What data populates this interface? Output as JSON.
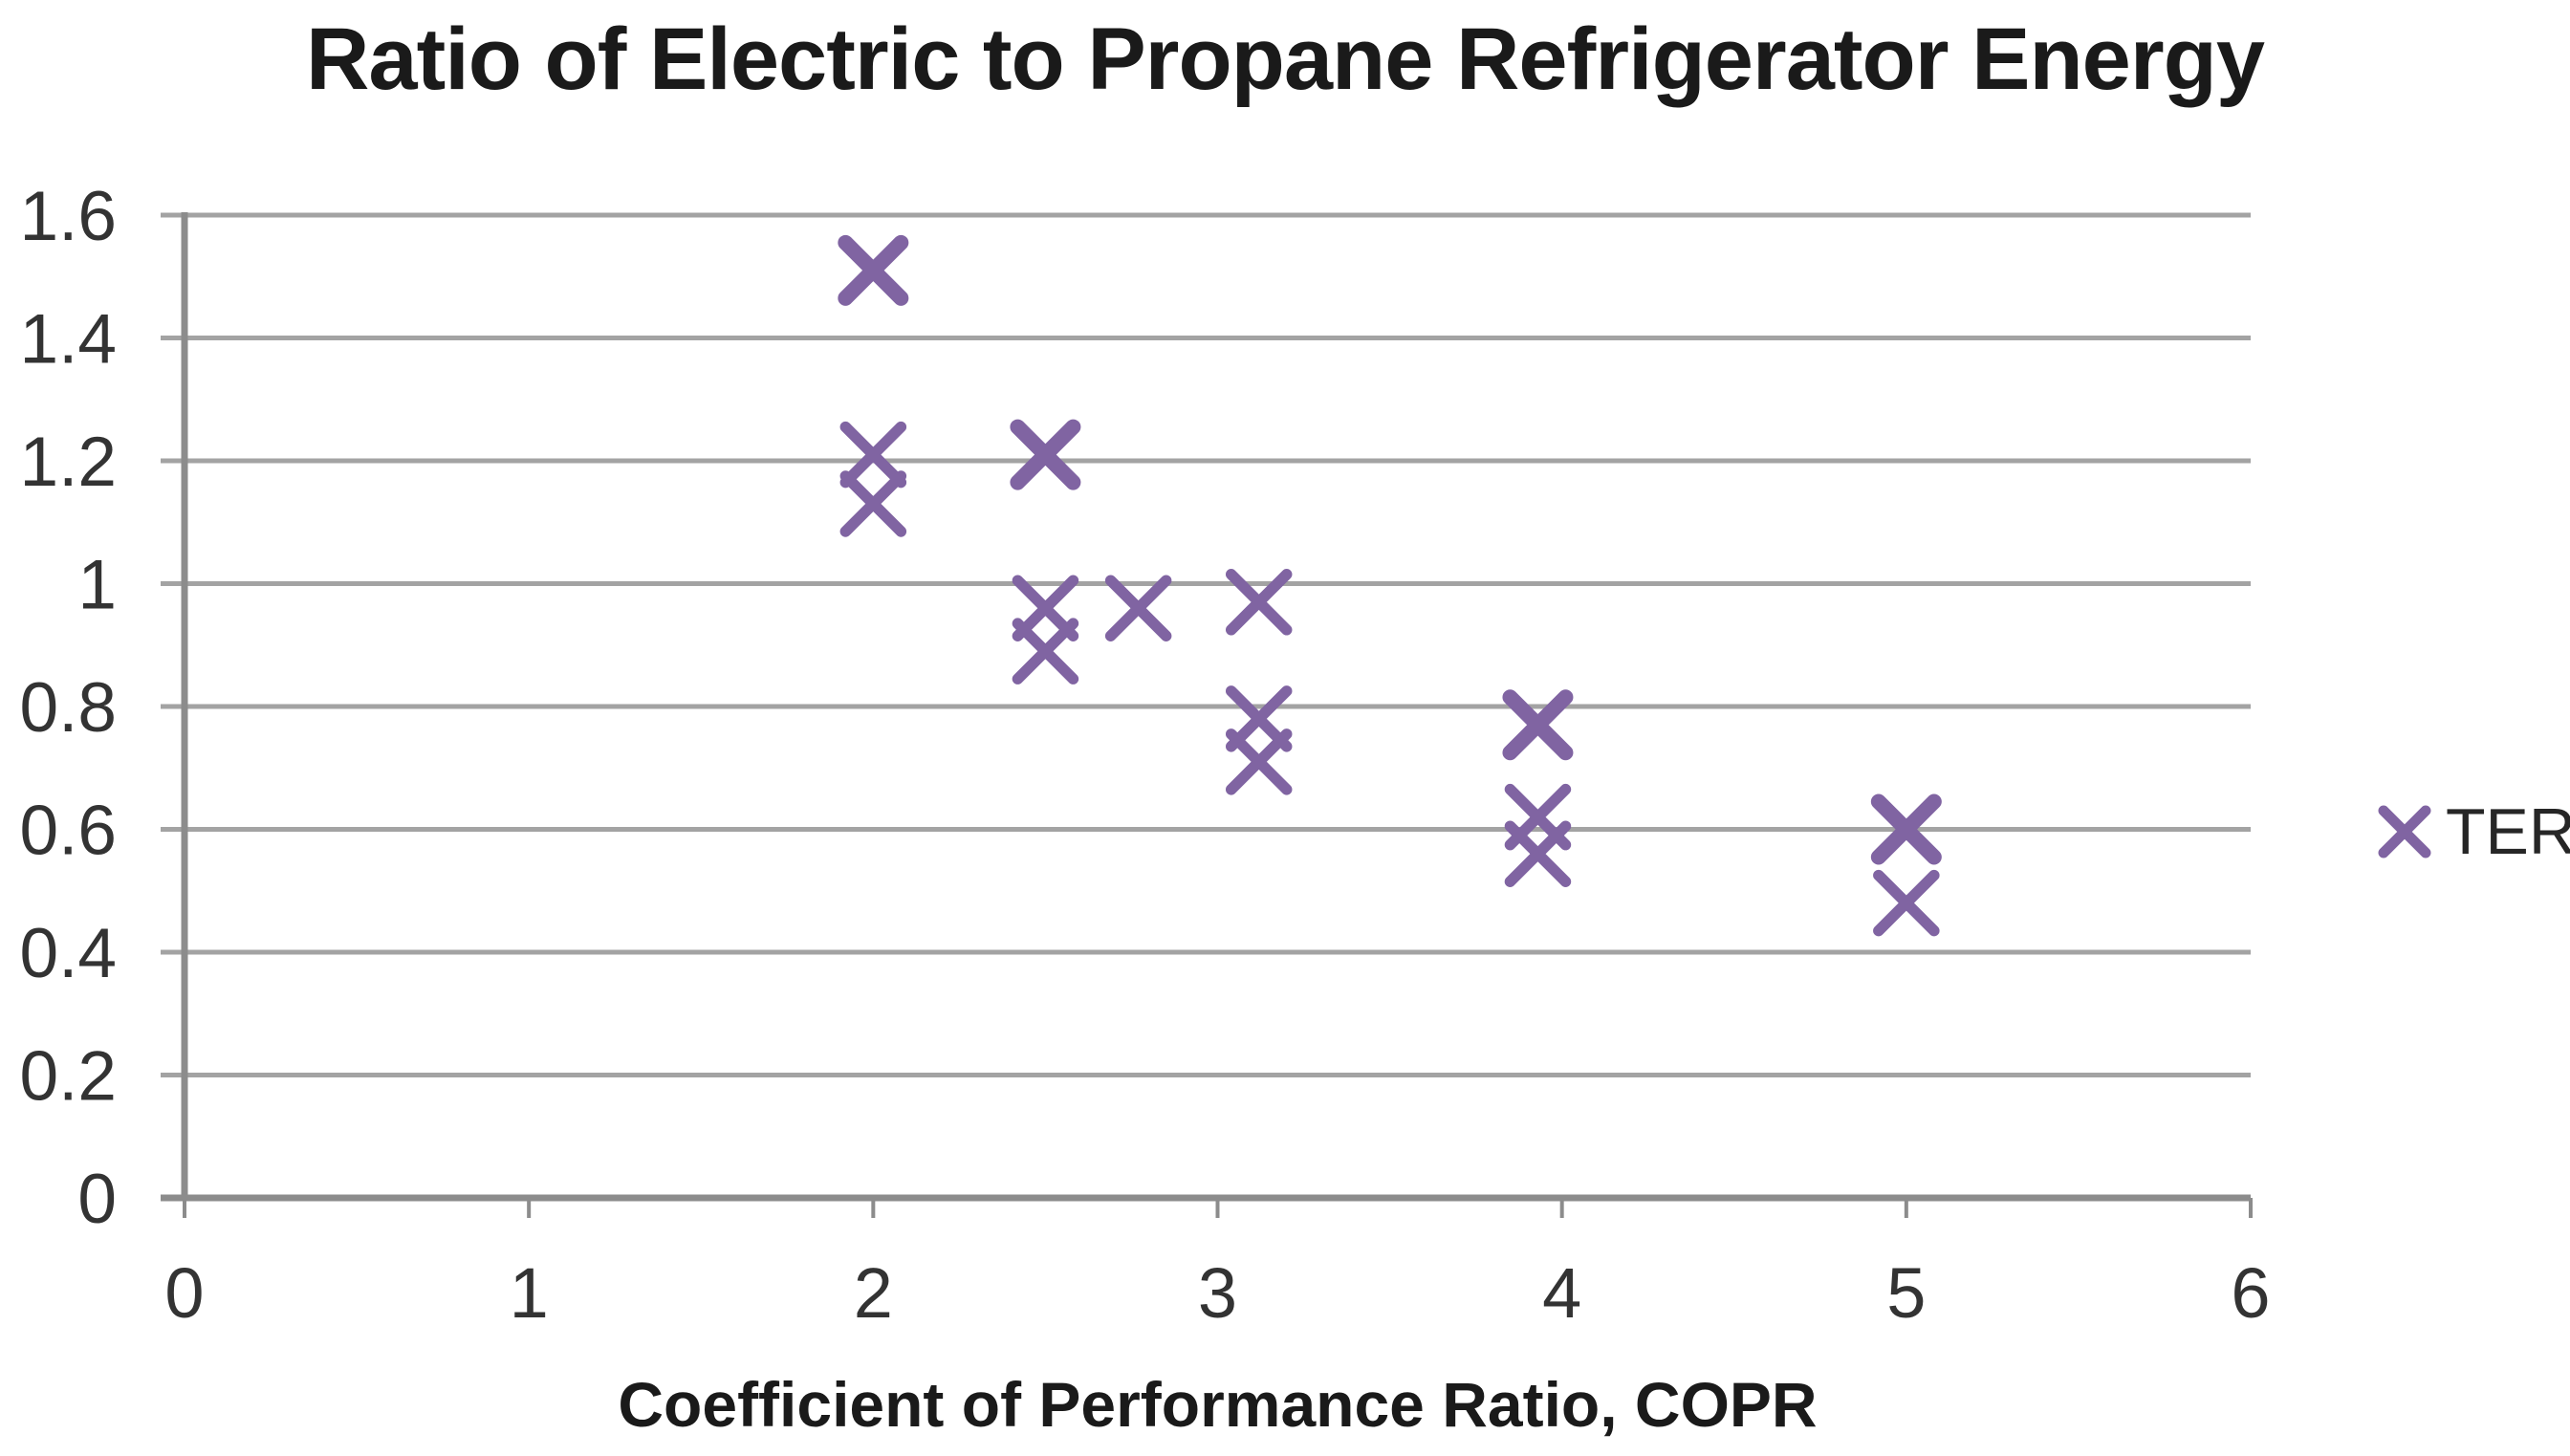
{
  "chart_data": {
    "type": "scatter",
    "title": "Ratio of Electric to Propane Refrigerator Energy",
    "xlabel": "Coefficient of Performance Ratio, COPR",
    "ylabel": "",
    "xlim": [
      0,
      6
    ],
    "ylim": [
      0,
      1.6
    ],
    "x_ticks": [
      0,
      1,
      2,
      3,
      4,
      5,
      6
    ],
    "x_tick_labels": [
      "0",
      "1",
      "2",
      "3",
      "4",
      "5",
      "6"
    ],
    "y_ticks": [
      0,
      0.2,
      0.4,
      0.6,
      0.8,
      1,
      1.2,
      1.4,
      1.6
    ],
    "y_tick_labels": [
      "0",
      "0.2",
      "0.4",
      "0.6",
      "0.8",
      "1",
      "1.2",
      "1.4",
      "1.6"
    ],
    "grid": "horizontal",
    "legend_position": "right",
    "colors": {
      "marker": "#8064A2",
      "gridline": "#A3A3A3",
      "axis": "#8C8C8C",
      "tick_text": "#333333",
      "title_text": "#1A1A1A"
    },
    "series": [
      {
        "name": "TER",
        "marker": "x",
        "color": "#8064A2",
        "points": [
          {
            "x": 2.0,
            "y": 1.51,
            "overlapped_duplicate": true
          },
          {
            "x": 2.0,
            "y": 1.21
          },
          {
            "x": 2.0,
            "y": 1.13
          },
          {
            "x": 2.5,
            "y": 1.21,
            "overlapped_duplicate": true
          },
          {
            "x": 2.5,
            "y": 0.96
          },
          {
            "x": 2.5,
            "y": 0.89
          },
          {
            "x": 2.77,
            "y": 0.96
          },
          {
            "x": 3.12,
            "y": 0.97
          },
          {
            "x": 3.12,
            "y": 0.78
          },
          {
            "x": 3.12,
            "y": 0.71
          },
          {
            "x": 3.93,
            "y": 0.77,
            "overlapped_duplicate": true
          },
          {
            "x": 3.93,
            "y": 0.62
          },
          {
            "x": 3.93,
            "y": 0.56
          },
          {
            "x": 5.0,
            "y": 0.6,
            "overlapped_duplicate": true
          },
          {
            "x": 5.0,
            "y": 0.48
          }
        ]
      }
    ]
  }
}
